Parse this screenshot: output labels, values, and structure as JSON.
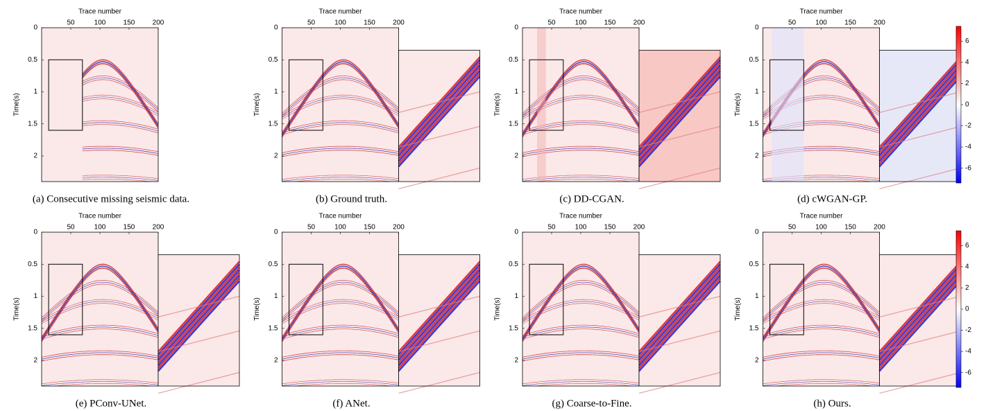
{
  "figure": {
    "x_label": "Trace number",
    "y_label": "Time(s)",
    "xlim": [
      0,
      200
    ],
    "xticks": [
      50,
      100,
      150,
      200
    ],
    "ylim": [
      0,
      2.4
    ],
    "yticks": [
      0,
      0.5,
      1,
      1.5,
      2
    ],
    "colorbar": {
      "lim": [
        -7.4,
        7.4
      ],
      "ticks": [
        6,
        4,
        2,
        0,
        -2,
        -4,
        -6
      ]
    },
    "panels": [
      {
        "caption": "(a) Consecutive missing seismic data."
      },
      {
        "caption": "(b) Ground truth."
      },
      {
        "caption": "(c) DD-CGAN."
      },
      {
        "caption": "(d) cWGAN-GP."
      },
      {
        "caption": "(e) PConv-UNet."
      },
      {
        "caption": "(f) ANet."
      },
      {
        "caption": "(g) Coarse-to-Fine."
      },
      {
        "caption": "(h) Ours."
      }
    ]
  }
}
